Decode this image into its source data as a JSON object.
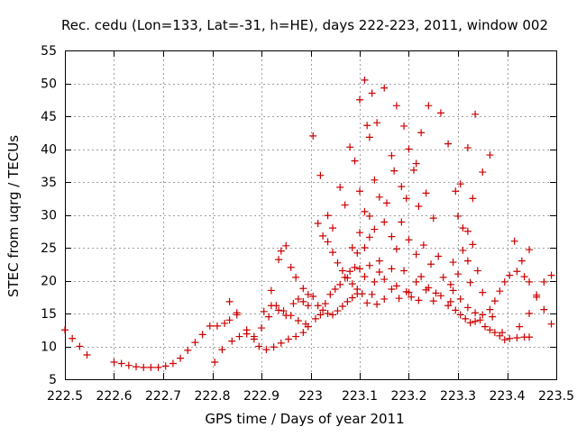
{
  "chart_data": {
    "type": "scatter",
    "title": "Rec. cedu (Lon=133, Lat=-31, h=HE), days 222-223, 2011, window 002",
    "xlabel": "GPS time / Days of year 2011",
    "ylabel": "STEC from uqrg / TECUs",
    "xlim": [
      222.5,
      223.5
    ],
    "ylim": [
      5,
      55
    ],
    "x_ticks": [
      {
        "value": 222.5,
        "label": "222.5"
      },
      {
        "value": 222.6,
        "label": "222.6"
      },
      {
        "value": 222.7,
        "label": "222.7"
      },
      {
        "value": 222.8,
        "label": "222.8"
      },
      {
        "value": 222.9,
        "label": "222.9"
      },
      {
        "value": 223.0,
        "label": "223"
      },
      {
        "value": 223.1,
        "label": "223.1"
      },
      {
        "value": 223.2,
        "label": "223.2"
      },
      {
        "value": 223.3,
        "label": "223.3"
      },
      {
        "value": 223.4,
        "label": "223.4"
      },
      {
        "value": 223.5,
        "label": "223.5"
      }
    ],
    "y_ticks": [
      {
        "value": 5,
        "label": "5"
      },
      {
        "value": 10,
        "label": "10"
      },
      {
        "value": 15,
        "label": "15"
      },
      {
        "value": 20,
        "label": "20"
      },
      {
        "value": 25,
        "label": "25"
      },
      {
        "value": 30,
        "label": "30"
      },
      {
        "value": 35,
        "label": "35"
      },
      {
        "value": 40,
        "label": "40"
      },
      {
        "value": 45,
        "label": "45"
      },
      {
        "value": 50,
        "label": "50"
      },
      {
        "value": 55,
        "label": "55"
      }
    ],
    "grid": true,
    "marker": "+",
    "marker_color": "#cc0000",
    "series": [
      {
        "points": [
          [
            222.5,
            12.5
          ],
          [
            222.515,
            11.2
          ],
          [
            222.53,
            10.0
          ],
          [
            222.545,
            8.7
          ],
          [
            222.6,
            7.6
          ],
          [
            222.615,
            7.4
          ],
          [
            222.63,
            7.1
          ],
          [
            222.645,
            6.9
          ],
          [
            222.66,
            6.8
          ],
          [
            222.675,
            6.8
          ],
          [
            222.69,
            6.8
          ],
          [
            222.705,
            7.0
          ],
          [
            222.72,
            7.4
          ],
          [
            222.735,
            8.2
          ],
          [
            222.75,
            9.4
          ],
          [
            222.765,
            10.6
          ],
          [
            222.78,
            11.8
          ],
          [
            222.795,
            13.1
          ],
          [
            222.81,
            13.1
          ],
          [
            222.825,
            13.5
          ],
          [
            222.835,
            14.0
          ],
          [
            222.85,
            15.1
          ],
          [
            222.805,
            7.6
          ],
          [
            222.82,
            9.5
          ],
          [
            222.84,
            10.8
          ],
          [
            222.855,
            11.5
          ],
          [
            222.87,
            11.9
          ],
          [
            222.885,
            11.1
          ],
          [
            222.895,
            10.0
          ],
          [
            222.91,
            9.5
          ],
          [
            222.925,
            9.9
          ],
          [
            222.94,
            10.5
          ],
          [
            222.955,
            11.1
          ],
          [
            222.97,
            11.5
          ],
          [
            222.985,
            12.1
          ],
          [
            222.995,
            13.0
          ],
          [
            222.835,
            16.8
          ],
          [
            222.85,
            14.8
          ],
          [
            222.87,
            12.5
          ],
          [
            222.885,
            11.5
          ],
          [
            222.9,
            12.8
          ],
          [
            222.915,
            14.5
          ],
          [
            222.93,
            16.2
          ],
          [
            222.945,
            15.4
          ],
          [
            222.96,
            14.7
          ],
          [
            222.975,
            13.9
          ],
          [
            222.99,
            13.4
          ],
          [
            222.92,
            18.5
          ],
          [
            222.935,
            23.2
          ],
          [
            222.94,
            24.5
          ],
          [
            222.95,
            25.3
          ],
          [
            222.96,
            22.0
          ],
          [
            222.97,
            20.5
          ],
          [
            222.985,
            18.8
          ],
          [
            222.995,
            17.9
          ],
          [
            222.905,
            15.3
          ],
          [
            222.92,
            16.2
          ],
          [
            222.935,
            15.5
          ],
          [
            222.95,
            14.7
          ],
          [
            222.965,
            16.5
          ],
          [
            222.975,
            17.2
          ],
          [
            222.985,
            16.8
          ],
          [
            222.995,
            16.2
          ],
          [
            223.005,
            42.0
          ],
          [
            223.02,
            36.0
          ],
          [
            223.035,
            29.9
          ],
          [
            223.045,
            28.0
          ],
          [
            223.06,
            34.2
          ],
          [
            223.07,
            31.5
          ],
          [
            223.085,
            25.0
          ],
          [
            223.095,
            24.2
          ],
          [
            223.005,
            17.6
          ],
          [
            223.015,
            16.2
          ],
          [
            223.025,
            15.5
          ],
          [
            223.035,
            15.0
          ],
          [
            223.045,
            14.8
          ],
          [
            223.055,
            15.4
          ],
          [
            223.065,
            16.1
          ],
          [
            223.075,
            16.8
          ],
          [
            223.085,
            17.4
          ],
          [
            223.095,
            18.0
          ],
          [
            223.01,
            14.2
          ],
          [
            223.02,
            14.8
          ],
          [
            223.03,
            16.5
          ],
          [
            223.04,
            17.9
          ],
          [
            223.05,
            18.7
          ],
          [
            223.06,
            19.4
          ],
          [
            223.07,
            20.5
          ],
          [
            223.08,
            21.4
          ],
          [
            223.09,
            22.0
          ],
          [
            223.015,
            28.7
          ],
          [
            223.025,
            26.8
          ],
          [
            223.035,
            25.9
          ],
          [
            223.045,
            24.3
          ],
          [
            223.055,
            22.7
          ],
          [
            223.065,
            21.5
          ],
          [
            223.075,
            20.4
          ],
          [
            223.085,
            19.5
          ],
          [
            223.095,
            18.7
          ],
          [
            223.08,
            40.3
          ],
          [
            223.09,
            38.2
          ],
          [
            223.1,
            47.5
          ],
          [
            223.11,
            50.5
          ],
          [
            223.115,
            43.6
          ],
          [
            223.12,
            41.8
          ],
          [
            223.125,
            48.5
          ],
          [
            223.135,
            44.0
          ],
          [
            223.15,
            49.3
          ],
          [
            223.165,
            39.0
          ],
          [
            223.175,
            46.6
          ],
          [
            223.19,
            43.5
          ],
          [
            223.2,
            40.0
          ],
          [
            223.215,
            37.8
          ],
          [
            223.225,
            42.5
          ],
          [
            223.24,
            46.6
          ],
          [
            223.265,
            45.5
          ],
          [
            223.28,
            40.8
          ],
          [
            223.1,
            33.6
          ],
          [
            223.11,
            30.5
          ],
          [
            223.12,
            29.8
          ],
          [
            223.13,
            35.3
          ],
          [
            223.14,
            32.7
          ],
          [
            223.155,
            31.8
          ],
          [
            223.17,
            36.7
          ],
          [
            223.185,
            34.3
          ],
          [
            223.195,
            32.5
          ],
          [
            223.21,
            36.8
          ],
          [
            223.22,
            31.3
          ],
          [
            223.235,
            33.3
          ],
          [
            223.25,
            29.5
          ],
          [
            223.1,
            27.3
          ],
          [
            223.11,
            25.0
          ],
          [
            223.12,
            26.6
          ],
          [
            223.13,
            27.8
          ],
          [
            223.14,
            23.0
          ],
          [
            223.15,
            28.9
          ],
          [
            223.165,
            26.7
          ],
          [
            223.175,
            24.8
          ],
          [
            223.185,
            28.9
          ],
          [
            223.2,
            26.2
          ],
          [
            223.215,
            24.0
          ],
          [
            223.23,
            25.4
          ],
          [
            223.245,
            22.5
          ],
          [
            223.26,
            23.7
          ],
          [
            223.1,
            21.8
          ],
          [
            223.11,
            20.6
          ],
          [
            223.12,
            22.3
          ],
          [
            223.13,
            19.8
          ],
          [
            223.14,
            21.3
          ],
          [
            223.15,
            20.2
          ],
          [
            223.165,
            21.8
          ],
          [
            223.175,
            19.2
          ],
          [
            223.19,
            21.5
          ],
          [
            223.2,
            18.2
          ],
          [
            223.215,
            19.8
          ],
          [
            223.225,
            20.6
          ],
          [
            223.24,
            18.9
          ],
          [
            223.255,
            18.1
          ],
          [
            223.27,
            20.5
          ],
          [
            223.285,
            19.4
          ],
          [
            223.105,
            18.0
          ],
          [
            223.115,
            16.6
          ],
          [
            223.125,
            17.9
          ],
          [
            223.135,
            16.4
          ],
          [
            223.15,
            17.2
          ],
          [
            223.165,
            18.7
          ],
          [
            223.18,
            17.3
          ],
          [
            223.195,
            18.3
          ],
          [
            223.205,
            17.5
          ],
          [
            223.22,
            17.0
          ],
          [
            223.235,
            18.6
          ],
          [
            223.25,
            16.9
          ],
          [
            223.265,
            17.7
          ],
          [
            223.28,
            16.2
          ],
          [
            223.295,
            33.6
          ],
          [
            223.305,
            34.7
          ],
          [
            223.32,
            40.2
          ],
          [
            223.33,
            32.5
          ],
          [
            223.335,
            45.3
          ],
          [
            223.35,
            36.5
          ],
          [
            223.365,
            39.1
          ],
          [
            223.3,
            29.8
          ],
          [
            223.31,
            28.0
          ],
          [
            223.32,
            27.5
          ],
          [
            223.33,
            25.5
          ],
          [
            223.34,
            21.5
          ],
          [
            223.35,
            18.2
          ],
          [
            223.29,
            22.8
          ],
          [
            223.3,
            21.0
          ],
          [
            223.31,
            24.6
          ],
          [
            223.32,
            23.0
          ],
          [
            223.325,
            19.7
          ],
          [
            223.285,
            16.8
          ],
          [
            223.295,
            15.5
          ],
          [
            223.305,
            14.8
          ],
          [
            223.315,
            14.2
          ],
          [
            223.325,
            13.6
          ],
          [
            223.335,
            13.8
          ],
          [
            223.345,
            14.0
          ],
          [
            223.355,
            13.0
          ],
          [
            223.365,
            12.5
          ],
          [
            223.375,
            12.1
          ],
          [
            223.385,
            11.6
          ],
          [
            223.395,
            11.0
          ],
          [
            223.405,
            11.2
          ],
          [
            223.42,
            11.3
          ],
          [
            223.435,
            11.4
          ],
          [
            223.445,
            11.4
          ],
          [
            223.29,
            18.5
          ],
          [
            223.305,
            17.2
          ],
          [
            223.32,
            15.9
          ],
          [
            223.335,
            15.1
          ],
          [
            223.35,
            14.8
          ],
          [
            223.365,
            15.6
          ],
          [
            223.375,
            16.9
          ],
          [
            223.385,
            18.4
          ],
          [
            223.395,
            19.8
          ],
          [
            223.405,
            20.8
          ],
          [
            223.42,
            21.4
          ],
          [
            223.435,
            20.6
          ],
          [
            223.445,
            19.8
          ],
          [
            223.37,
            14.5
          ],
          [
            223.39,
            12.1
          ],
          [
            223.425,
            13.0
          ],
          [
            223.445,
            15.0
          ],
          [
            223.46,
            17.5
          ],
          [
            223.475,
            19.8
          ],
          [
            223.49,
            20.8
          ],
          [
            223.415,
            26.0
          ],
          [
            223.43,
            23.0
          ],
          [
            223.445,
            24.7
          ],
          [
            223.46,
            17.8
          ],
          [
            223.475,
            15.6
          ],
          [
            223.49,
            13.4
          ]
        ]
      }
    ]
  }
}
